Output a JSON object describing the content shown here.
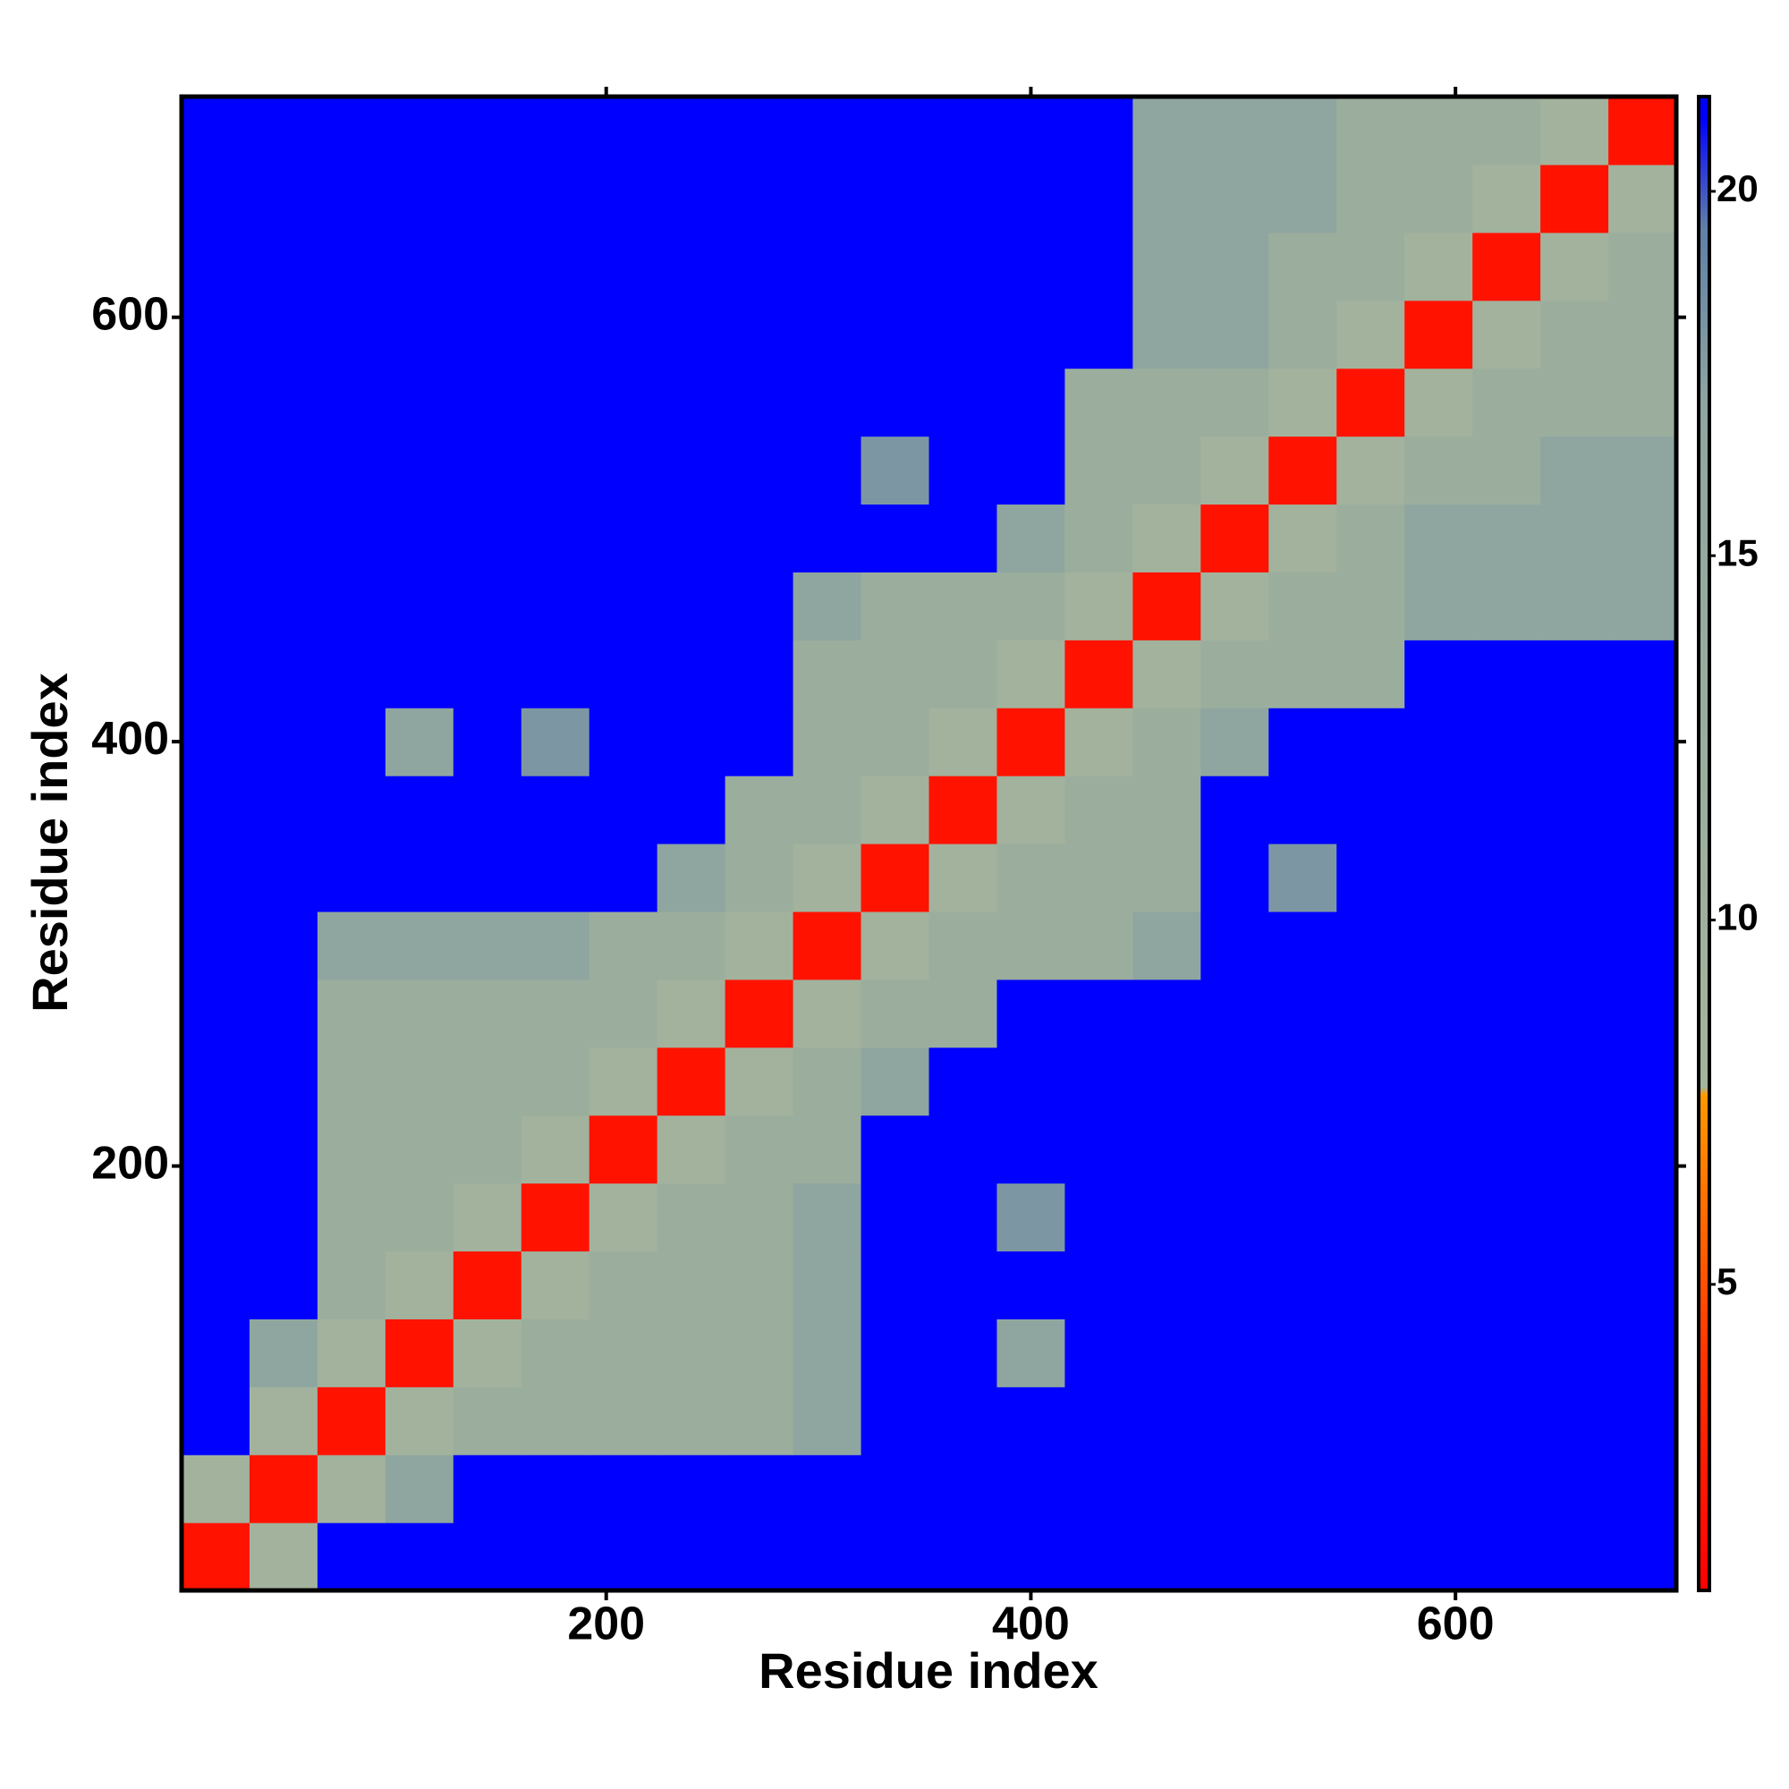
{
  "chart_data": {
    "type": "heatmap",
    "x_label": "Residue index",
    "y_label": "Residue index",
    "x_bins": [
      0,
      32,
      64,
      96,
      128,
      160,
      192,
      224,
      256,
      288,
      320,
      352,
      384,
      416,
      448,
      480,
      512,
      544,
      576,
      608,
      640,
      672,
      704
    ],
    "y_bins": [
      0,
      32,
      64,
      96,
      128,
      160,
      192,
      224,
      256,
      288,
      320,
      352,
      384,
      416,
      448,
      480,
      512,
      544,
      576,
      608,
      640,
      672,
      704
    ],
    "values": [
      [
        2,
        9,
        21,
        21,
        21,
        21,
        21,
        21,
        21,
        21,
        21,
        21,
        21,
        21,
        21,
        21,
        21,
        21,
        21,
        21,
        21,
        21
      ],
      [
        9,
        2,
        9,
        17,
        21,
        21,
        21,
        21,
        21,
        21,
        21,
        21,
        21,
        21,
        21,
        21,
        21,
        21,
        21,
        21,
        21,
        21
      ],
      [
        21,
        9,
        2,
        9,
        12,
        12,
        12,
        12,
        12,
        17,
        21,
        21,
        21,
        21,
        21,
        21,
        21,
        21,
        21,
        21,
        21,
        21
      ],
      [
        21,
        17,
        9,
        2,
        9,
        12,
        12,
        12,
        12,
        17,
        21,
        21,
        17,
        21,
        21,
        21,
        21,
        21,
        21,
        21,
        21,
        21
      ],
      [
        21,
        21,
        12,
        9,
        2,
        9,
        12,
        12,
        12,
        17,
        21,
        21,
        21,
        21,
        21,
        21,
        21,
        21,
        21,
        21,
        21,
        21
      ],
      [
        21,
        21,
        12,
        12,
        9,
        2,
        9,
        12,
        12,
        17,
        21,
        21,
        18,
        21,
        21,
        21,
        21,
        21,
        21,
        21,
        21,
        21
      ],
      [
        21,
        21,
        12,
        12,
        12,
        9,
        2,
        9,
        12,
        12,
        21,
        21,
        21,
        21,
        21,
        21,
        21,
        21,
        21,
        21,
        21,
        21
      ],
      [
        21,
        21,
        12,
        12,
        12,
        12,
        9,
        2,
        9,
        12,
        17,
        21,
        21,
        21,
        21,
        21,
        21,
        21,
        21,
        21,
        21,
        21
      ],
      [
        21,
        21,
        12,
        12,
        12,
        12,
        12,
        9,
        2,
        9,
        12,
        12,
        21,
        21,
        21,
        21,
        21,
        21,
        21,
        21,
        21,
        21
      ],
      [
        21,
        21,
        17,
        17,
        17,
        17,
        12,
        12,
        9,
        2,
        9,
        12,
        12,
        12,
        17,
        21,
        21,
        21,
        21,
        21,
        21,
        21
      ],
      [
        21,
        21,
        21,
        21,
        21,
        21,
        21,
        17,
        12,
        9,
        2,
        9,
        12,
        12,
        12,
        21,
        18,
        21,
        21,
        21,
        21,
        21
      ],
      [
        21,
        21,
        21,
        21,
        21,
        21,
        21,
        21,
        12,
        12,
        9,
        2,
        9,
        12,
        12,
        21,
        21,
        21,
        21,
        21,
        21,
        21
      ],
      [
        21,
        21,
        21,
        17,
        21,
        18,
        21,
        21,
        21,
        12,
        12,
        9,
        2,
        9,
        12,
        17,
        21,
        21,
        21,
        21,
        21,
        21
      ],
      [
        21,
        21,
        21,
        21,
        21,
        21,
        21,
        21,
        21,
        12,
        12,
        12,
        9,
        2,
        9,
        12,
        12,
        12,
        21,
        21,
        21,
        21
      ],
      [
        21,
        21,
        21,
        21,
        21,
        21,
        21,
        21,
        21,
        17,
        12,
        12,
        12,
        9,
        2,
        9,
        12,
        12,
        17,
        17,
        17,
        17
      ],
      [
        21,
        21,
        21,
        21,
        21,
        21,
        21,
        21,
        21,
        21,
        21,
        21,
        17,
        12,
        9,
        2,
        9,
        12,
        17,
        17,
        17,
        17
      ],
      [
        21,
        21,
        21,
        21,
        21,
        21,
        21,
        21,
        21,
        21,
        18,
        21,
        21,
        12,
        12,
        9,
        2,
        9,
        12,
        12,
        17,
        17
      ],
      [
        21,
        21,
        21,
        21,
        21,
        21,
        21,
        21,
        21,
        21,
        21,
        21,
        21,
        12,
        12,
        12,
        9,
        2,
        9,
        12,
        12,
        12
      ],
      [
        21,
        21,
        21,
        21,
        21,
        21,
        21,
        21,
        21,
        21,
        21,
        21,
        21,
        21,
        17,
        17,
        12,
        9,
        2,
        9,
        12,
        12
      ],
      [
        21,
        21,
        21,
        21,
        21,
        21,
        21,
        21,
        21,
        21,
        21,
        21,
        21,
        21,
        17,
        17,
        12,
        12,
        9,
        2,
        9,
        12
      ],
      [
        21,
        21,
        21,
        21,
        21,
        21,
        21,
        21,
        21,
        21,
        21,
        21,
        21,
        21,
        17,
        17,
        17,
        12,
        12,
        9,
        2,
        9
      ],
      [
        21,
        21,
        21,
        21,
        21,
        21,
        21,
        21,
        21,
        21,
        21,
        21,
        21,
        21,
        17,
        17,
        17,
        12,
        12,
        12,
        9,
        2
      ]
    ],
    "xlim": [
      0,
      704
    ],
    "ylim": [
      0,
      704
    ],
    "xticks": [
      200,
      400,
      600
    ],
    "yticks": [
      200,
      400,
      600
    ],
    "clim": [
      0.8,
      21.3
    ],
    "cticks": [
      5,
      10,
      15,
      20
    ],
    "colorscale": [
      [
        0.8,
        "#ff0000"
      ],
      [
        4,
        "#ff3300"
      ],
      [
        7.6,
        "#ff9900"
      ],
      [
        7.7,
        "#a5b49c"
      ],
      [
        17,
        "#8fa6a0"
      ],
      [
        19.5,
        "#5f80a8"
      ],
      [
        21,
        "#0000ff"
      ]
    ]
  }
}
